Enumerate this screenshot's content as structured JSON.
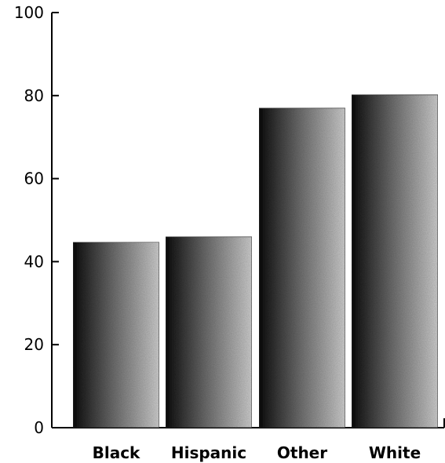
{
  "chart_data": {
    "type": "bar",
    "title": "",
    "xlabel": "",
    "ylabel": "",
    "categories": [
      "Black",
      "Hispanic",
      "Other",
      "White"
    ],
    "values": [
      44.7,
      46,
      77,
      80.2
    ],
    "ylim": [
      0,
      100
    ],
    "yticks": [
      0,
      20,
      40,
      60,
      80,
      100
    ],
    "grid": false,
    "legend": "none",
    "bar_color_dark": "#111111",
    "bar_color_light": "#d0d0d0"
  }
}
